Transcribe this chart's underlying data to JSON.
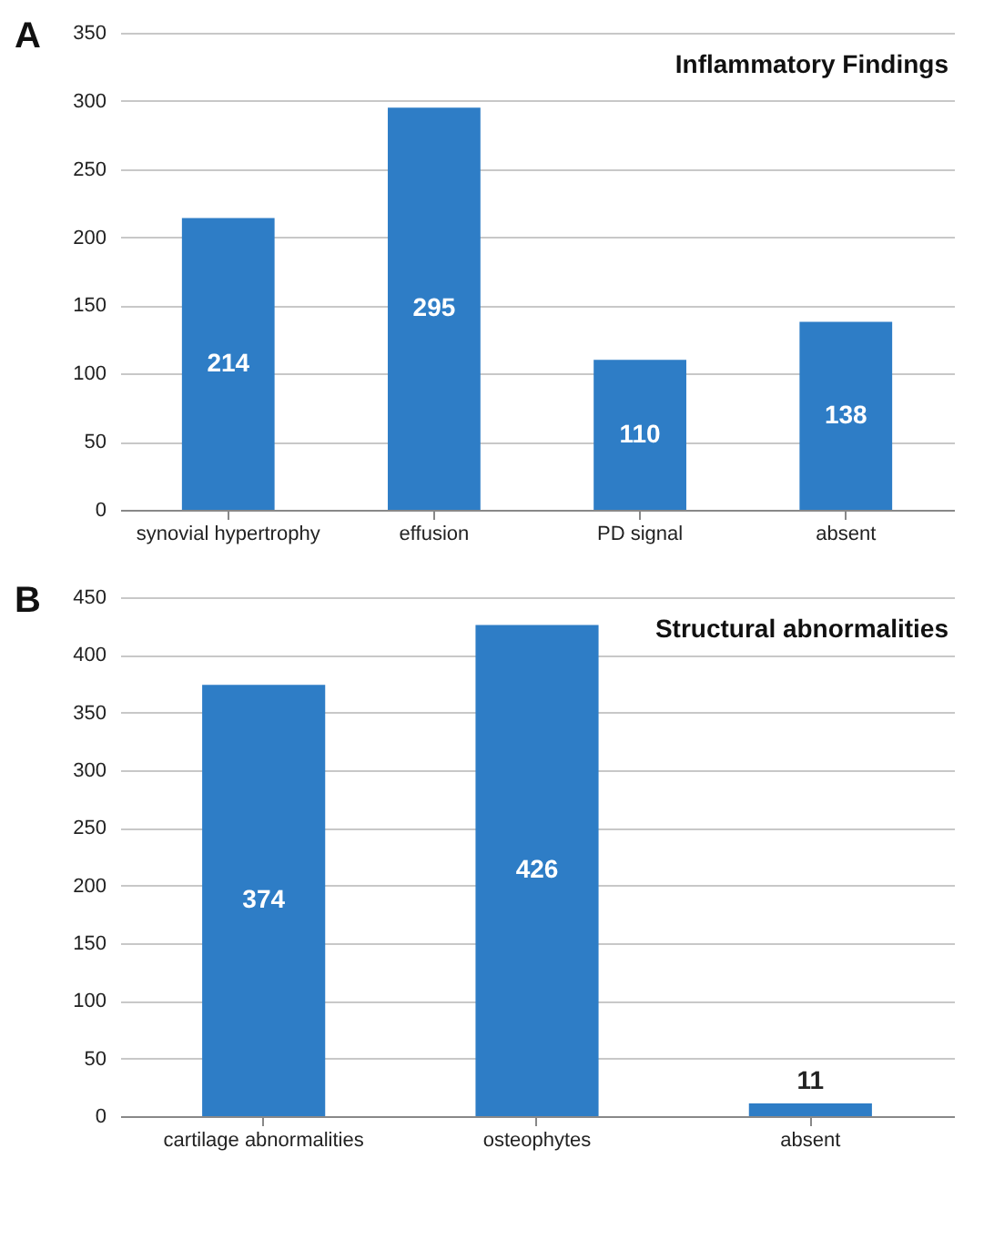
{
  "chart_data": [
    {
      "type": "bar",
      "title": "Inflammatory Findings",
      "annotations": [
        "A"
      ],
      "categories": [
        "synovial hypertrophy",
        "effusion",
        "PD signal",
        "absent"
      ],
      "values": [
        214,
        295,
        110,
        138
      ],
      "color": "#2e7dc6",
      "ylim": [
        0,
        350
      ],
      "yticks": [
        0,
        50,
        100,
        150,
        200,
        250,
        300,
        350
      ],
      "grid": "y",
      "data_labels": true
    },
    {
      "type": "bar",
      "title": "Structural  abnormalities",
      "annotations": [
        "B"
      ],
      "categories": [
        "cartilage abnormalities",
        "osteophytes",
        "absent"
      ],
      "values": [
        374,
        426,
        11
      ],
      "color": "#2e7dc6",
      "ylim": [
        0,
        450
      ],
      "yticks": [
        0,
        50,
        100,
        150,
        200,
        250,
        300,
        350,
        400,
        450
      ],
      "grid": "y",
      "data_labels": true
    }
  ]
}
